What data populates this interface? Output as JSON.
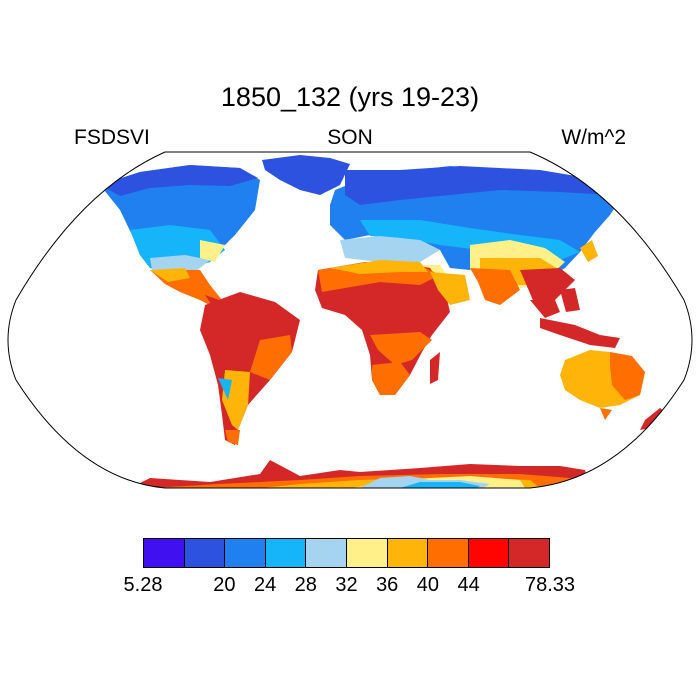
{
  "title": "1850_132 (yrs 19-23)",
  "left_label": "FSDSVI",
  "center_label": "SON",
  "right_label": "W/m^2",
  "colorbar": {
    "colors": [
      "#4010f0",
      "#2e52e0",
      "#2080f0",
      "#16b4f8",
      "#a4d4f0",
      "#fff08a",
      "#ffb40a",
      "#ff6e00",
      "#ff0400",
      "#d42828"
    ],
    "labels": [
      "5.28",
      "20",
      "24",
      "28",
      "32",
      "36",
      "40",
      "44",
      "78.33"
    ]
  }
}
